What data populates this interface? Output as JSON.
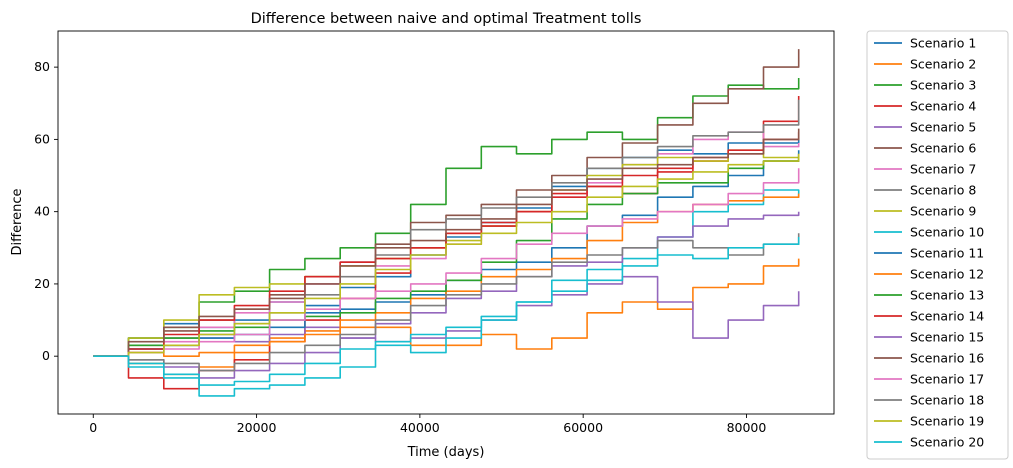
{
  "chart_data": {
    "type": "line",
    "title": "Difference between naive and optimal Treatment tolls",
    "xlabel": "Time (days)",
    "ylabel": "Difference",
    "xlim": [
      -4320,
      90720
    ],
    "ylim": [
      -16,
      90
    ],
    "xticks": [
      0,
      20000,
      40000,
      60000,
      80000
    ],
    "xtick_labels": [
      "0",
      "20000",
      "40000",
      "60000",
      "80000"
    ],
    "yticks": [
      0,
      20,
      40,
      60,
      80
    ],
    "ytick_labels": [
      "0",
      "20",
      "40",
      "60",
      "80"
    ],
    "grid": false,
    "legend_position": "outside-right",
    "series": [
      {
        "name": "Scenario 1",
        "color": "#1f77b4",
        "x": [
          0,
          4320,
          8640,
          12960,
          17280,
          21600,
          25920,
          30240,
          34560,
          38880,
          43200,
          47520,
          51840,
          56160,
          60480,
          64800,
          69120,
          73440,
          77760,
          82080,
          86400
        ],
        "y": [
          0,
          5,
          9,
          8,
          10,
          15,
          14,
          19,
          22,
          28,
          33,
          37,
          41,
          47,
          52,
          55,
          57,
          56,
          59,
          59,
          60
        ]
      },
      {
        "name": "Scenario 2",
        "color": "#ff7f0e",
        "x": [
          0,
          4320,
          8640,
          12960,
          17280,
          21600,
          25920,
          30240,
          34560,
          38880,
          43200,
          47520,
          51840,
          56160,
          60480,
          64800,
          69120,
          73440,
          77760,
          82080,
          86400
        ],
        "y": [
          0,
          -2,
          -5,
          -3,
          1,
          5,
          7,
          8,
          8,
          3,
          3,
          6,
          2,
          5,
          12,
          15,
          13,
          19,
          20,
          25,
          27
        ]
      },
      {
        "name": "Scenario 3",
        "color": "#2ca02c",
        "x": [
          0,
          4320,
          8640,
          12960,
          17280,
          21600,
          25920,
          30240,
          34560,
          38880,
          43200,
          47520,
          51840,
          56160,
          60480,
          64800,
          69120,
          73440,
          77760,
          82080,
          86400
        ],
        "y": [
          0,
          5,
          8,
          15,
          18,
          24,
          27,
          30,
          34,
          42,
          52,
          58,
          56,
          60,
          62,
          60,
          66,
          72,
          75,
          74,
          77
        ]
      },
      {
        "name": "Scenario 4",
        "color": "#d62728",
        "x": [
          0,
          4320,
          8640,
          12960,
          17280,
          21600,
          25920,
          30240,
          34560,
          38880,
          43200,
          47520,
          51840,
          56160,
          60480,
          64800,
          69120,
          73440,
          77760,
          82080,
          86400
        ],
        "y": [
          0,
          -6,
          -9,
          -4,
          -1,
          4,
          10,
          16,
          23,
          30,
          34,
          37,
          40,
          45,
          47,
          45,
          51,
          54,
          56,
          65,
          72
        ]
      },
      {
        "name": "Scenario 5",
        "color": "#9467bd",
        "x": [
          0,
          4320,
          8640,
          12960,
          17280,
          21600,
          25920,
          30240,
          34560,
          38880,
          43200,
          47520,
          51840,
          56160,
          60480,
          64800,
          69120,
          73440,
          77760,
          82080,
          86400
        ],
        "y": [
          0,
          1,
          3,
          5,
          4,
          6,
          8,
          5,
          4,
          5,
          7,
          10,
          14,
          17,
          20,
          22,
          15,
          5,
          10,
          14,
          18
        ]
      },
      {
        "name": "Scenario 6",
        "color": "#8c564b",
        "x": [
          0,
          4320,
          8640,
          12960,
          17280,
          21600,
          25920,
          30240,
          34560,
          38880,
          43200,
          47520,
          51840,
          56160,
          60480,
          64800,
          69120,
          73440,
          77760,
          82080,
          86400
        ],
        "y": [
          0,
          3,
          7,
          10,
          13,
          17,
          22,
          26,
          31,
          37,
          39,
          42,
          46,
          50,
          55,
          59,
          64,
          70,
          74,
          80,
          85
        ]
      },
      {
        "name": "Scenario 7",
        "color": "#e377c2",
        "x": [
          0,
          4320,
          8640,
          12960,
          17280,
          21600,
          25920,
          30240,
          34560,
          38880,
          43200,
          47520,
          51840,
          56160,
          60480,
          64800,
          69120,
          73440,
          77760,
          82080,
          86400
        ],
        "y": [
          0,
          2,
          4,
          8,
          12,
          15,
          20,
          26,
          25,
          27,
          31,
          36,
          40,
          44,
          48,
          53,
          56,
          60,
          62,
          58,
          59
        ]
      },
      {
        "name": "Scenario 8",
        "color": "#7f7f7f",
        "x": [
          0,
          4320,
          8640,
          12960,
          17280,
          21600,
          25920,
          30240,
          34560,
          38880,
          43200,
          47520,
          51840,
          56160,
          60480,
          64800,
          69120,
          73440,
          77760,
          82080,
          86400
        ],
        "y": [
          0,
          2,
          5,
          6,
          9,
          12,
          17,
          22,
          28,
          35,
          38,
          41,
          44,
          48,
          52,
          55,
          58,
          61,
          62,
          64,
          71
        ]
      },
      {
        "name": "Scenario 9",
        "color": "#bcbd22",
        "x": [
          0,
          4320,
          8640,
          12960,
          17280,
          21600,
          25920,
          30240,
          34560,
          38880,
          43200,
          47520,
          51840,
          56160,
          60480,
          64800,
          69120,
          73440,
          77760,
          82080,
          86400
        ],
        "y": [
          0,
          5,
          10,
          17,
          19,
          20,
          22,
          25,
          27,
          30,
          32,
          36,
          40,
          46,
          50,
          53,
          55,
          54,
          57,
          55,
          56
        ]
      },
      {
        "name": "Scenario 10",
        "color": "#17becf",
        "x": [
          0,
          4320,
          8640,
          12960,
          17280,
          21600,
          25920,
          30240,
          34560,
          38880,
          43200,
          47520,
          51840,
          56160,
          60480,
          64800,
          69120,
          73440,
          77760,
          82080,
          86400
        ],
        "y": [
          0,
          -3,
          -6,
          -11,
          -9,
          -8,
          -6,
          -3,
          3,
          1,
          5,
          10,
          15,
          21,
          24,
          27,
          33,
          40,
          42,
          46,
          44
        ]
      },
      {
        "name": "Scenario 11",
        "color": "#1f77b4",
        "x": [
          0,
          4320,
          8640,
          12960,
          17280,
          21600,
          25920,
          30240,
          34560,
          38880,
          43200,
          47520,
          51840,
          56160,
          60480,
          64800,
          69120,
          73440,
          77760,
          82080,
          86400
        ],
        "y": [
          0,
          2,
          3,
          5,
          6,
          8,
          12,
          13,
          15,
          17,
          21,
          24,
          26,
          30,
          36,
          39,
          44,
          47,
          50,
          54,
          57
        ]
      },
      {
        "name": "Scenario 12",
        "color": "#ff7f0e",
        "x": [
          0,
          4320,
          8640,
          12960,
          17280,
          21600,
          25920,
          30240,
          34560,
          38880,
          43200,
          47520,
          51840,
          56160,
          60480,
          64800,
          69120,
          73440,
          77760,
          82080,
          86400
        ],
        "y": [
          0,
          1,
          0,
          1,
          3,
          4,
          6,
          10,
          12,
          16,
          18,
          22,
          24,
          27,
          32,
          37,
          40,
          42,
          43,
          44,
          45
        ]
      },
      {
        "name": "Scenario 13",
        "color": "#2ca02c",
        "x": [
          0,
          4320,
          8640,
          12960,
          17280,
          21600,
          25920,
          30240,
          34560,
          38880,
          43200,
          47520,
          51840,
          56160,
          60480,
          64800,
          69120,
          73440,
          77760,
          82080,
          86400
        ],
        "y": [
          0,
          3,
          5,
          7,
          8,
          10,
          11,
          12,
          16,
          18,
          21,
          26,
          32,
          38,
          42,
          45,
          48,
          48,
          52,
          54,
          55
        ]
      },
      {
        "name": "Scenario 14",
        "color": "#d62728",
        "x": [
          0,
          4320,
          8640,
          12960,
          17280,
          21600,
          25920,
          30240,
          34560,
          38880,
          43200,
          47520,
          51840,
          56160,
          60480,
          64800,
          69120,
          73440,
          77760,
          82080,
          86400
        ],
        "y": [
          0,
          2,
          6,
          10,
          14,
          18,
          22,
          26,
          27,
          30,
          34,
          36,
          40,
          44,
          47,
          50,
          52,
          55,
          57,
          60,
          62
        ]
      },
      {
        "name": "Scenario 15",
        "color": "#9467bd",
        "x": [
          0,
          4320,
          8640,
          12960,
          17280,
          21600,
          25920,
          30240,
          34560,
          38880,
          43200,
          47520,
          51840,
          56160,
          60480,
          64800,
          69120,
          73440,
          77760,
          82080,
          86400
        ],
        "y": [
          0,
          -1,
          -3,
          -6,
          -4,
          -2,
          1,
          5,
          9,
          12,
          16,
          18,
          22,
          25,
          26,
          30,
          33,
          36,
          38,
          39,
          40
        ]
      },
      {
        "name": "Scenario 16",
        "color": "#8c564b",
        "x": [
          0,
          4320,
          8640,
          12960,
          17280,
          21600,
          25920,
          30240,
          34560,
          38880,
          43200,
          47520,
          51840,
          56160,
          60480,
          64800,
          69120,
          73440,
          77760,
          82080,
          86400
        ],
        "y": [
          0,
          4,
          8,
          11,
          13,
          16,
          20,
          25,
          30,
          32,
          35,
          38,
          42,
          46,
          49,
          52,
          53,
          55,
          56,
          60,
          63
        ]
      },
      {
        "name": "Scenario 17",
        "color": "#e377c2",
        "x": [
          0,
          4320,
          8640,
          12960,
          17280,
          21600,
          25920,
          30240,
          34560,
          38880,
          43200,
          47520,
          51840,
          56160,
          60480,
          64800,
          69120,
          73440,
          77760,
          82080,
          86400
        ],
        "y": [
          0,
          1,
          2,
          4,
          6,
          10,
          13,
          16,
          18,
          20,
          23,
          27,
          31,
          34,
          36,
          38,
          40,
          42,
          45,
          48,
          52
        ]
      },
      {
        "name": "Scenario 18",
        "color": "#7f7f7f",
        "x": [
          0,
          4320,
          8640,
          12960,
          17280,
          21600,
          25920,
          30240,
          34560,
          38880,
          43200,
          47520,
          51840,
          56160,
          60480,
          64800,
          69120,
          73440,
          77760,
          82080,
          86400
        ],
        "y": [
          0,
          -1,
          -2,
          -4,
          -2,
          1,
          3,
          6,
          10,
          14,
          17,
          20,
          22,
          26,
          28,
          30,
          32,
          30,
          28,
          31,
          34
        ]
      },
      {
        "name": "Scenario 19",
        "color": "#bcbd22",
        "x": [
          0,
          4320,
          8640,
          12960,
          17280,
          21600,
          25920,
          30240,
          34560,
          38880,
          43200,
          47520,
          51840,
          56160,
          60480,
          64800,
          69120,
          73440,
          77760,
          82080,
          86400
        ],
        "y": [
          0,
          1,
          3,
          6,
          9,
          12,
          16,
          20,
          24,
          28,
          31,
          34,
          37,
          40,
          44,
          47,
          49,
          51,
          53,
          54,
          56
        ]
      },
      {
        "name": "Scenario 20",
        "color": "#17becf",
        "x": [
          0,
          4320,
          8640,
          12960,
          17280,
          21600,
          25920,
          30240,
          34560,
          38880,
          43200,
          47520,
          51840,
          56160,
          60480,
          64800,
          69120,
          73440,
          77760,
          82080,
          86400
        ],
        "y": [
          0,
          -2,
          -5,
          -8,
          -7,
          -5,
          -2,
          2,
          4,
          6,
          8,
          11,
          15,
          18,
          21,
          25,
          28,
          27,
          30,
          31,
          33
        ]
      }
    ]
  }
}
